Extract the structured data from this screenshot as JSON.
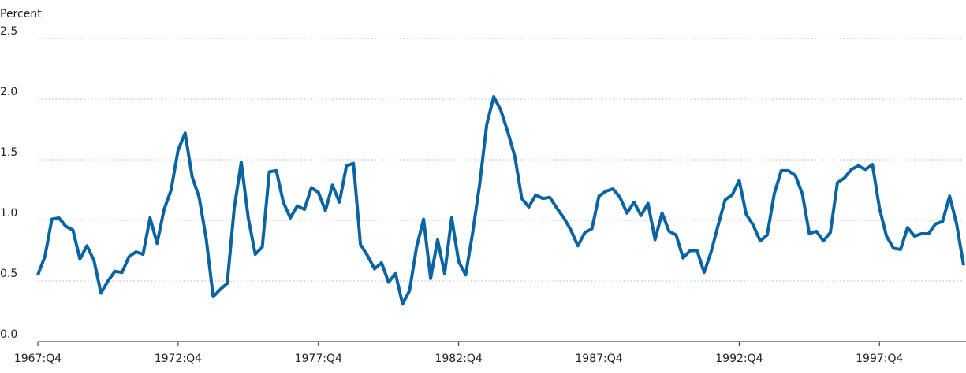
{
  "chart_data": {
    "type": "line",
    "y_label": "Percent",
    "categories": [
      "1967:Q4",
      null,
      null,
      null,
      null,
      null,
      null,
      null,
      null,
      null,
      null,
      null,
      null,
      null,
      null,
      null,
      null,
      null,
      null,
      null,
      "1972:Q4",
      null,
      null,
      null,
      null,
      null,
      null,
      null,
      null,
      null,
      null,
      null,
      null,
      null,
      null,
      null,
      null,
      null,
      null,
      null,
      "1977:Q4",
      null,
      null,
      null,
      null,
      null,
      null,
      null,
      null,
      null,
      null,
      null,
      null,
      null,
      null,
      null,
      null,
      null,
      null,
      null,
      "1982:Q4",
      null,
      null,
      null,
      null,
      null,
      null,
      null,
      null,
      null,
      null,
      null,
      null,
      null,
      null,
      null,
      null,
      null,
      null,
      null,
      "1987:Q4",
      null,
      null,
      null,
      null,
      null,
      null,
      null,
      null,
      null,
      null,
      null,
      null,
      null,
      null,
      null,
      null,
      null,
      null,
      null,
      "1992:Q4",
      null,
      null,
      null,
      null,
      null,
      null,
      null,
      null,
      null,
      null,
      null,
      null,
      null,
      null,
      null,
      null,
      null,
      null,
      null,
      "1997:Q4",
      null,
      null,
      null,
      null,
      null,
      null,
      null,
      null,
      null,
      null,
      null,
      null
    ],
    "series": [
      {
        "color": "#0a64a4",
        "values": [
          0.55,
          0.7,
          1.01,
          1.02,
          0.95,
          0.92,
          0.68,
          0.79,
          0.67,
          0.4,
          0.5,
          0.58,
          0.57,
          0.7,
          0.74,
          0.72,
          1.02,
          0.81,
          1.09,
          1.25,
          1.58,
          1.72,
          1.36,
          1.19,
          0.85,
          0.37,
          0.43,
          0.48,
          1.1,
          1.48,
          1.02,
          0.72,
          0.78,
          1.4,
          1.41,
          1.15,
          1.02,
          1.12,
          1.09,
          1.27,
          1.23,
          1.08,
          1.29,
          1.15,
          1.45,
          1.47,
          0.8,
          0.71,
          0.6,
          0.65,
          0.49,
          0.56,
          0.31,
          0.42,
          0.78,
          1.01,
          0.52,
          0.84,
          0.56,
          1.02,
          0.66,
          0.55,
          0.9,
          1.3,
          1.79,
          2.02,
          1.91,
          1.73,
          1.53,
          1.18,
          1.11,
          1.21,
          1.18,
          1.19,
          1.1,
          1.02,
          0.92,
          0.79,
          0.9,
          0.93,
          1.2,
          1.24,
          1.26,
          1.19,
          1.06,
          1.15,
          1.04,
          1.14,
          0.84,
          1.06,
          0.91,
          0.88,
          0.69,
          0.75,
          0.75,
          0.57,
          0.74,
          0.96,
          1.17,
          1.21,
          1.33,
          1.05,
          0.96,
          0.83,
          0.88,
          1.22,
          1.41,
          1.41,
          1.37,
          1.22,
          0.89,
          0.91,
          0.83,
          0.9,
          1.31,
          1.35,
          1.42,
          1.45,
          1.42,
          1.46,
          1.1,
          0.87,
          0.77,
          0.76,
          0.94,
          0.87,
          0.89,
          0.89,
          0.97,
          0.99,
          1.2,
          0.97,
          0.63
        ]
      }
    ],
    "ylim": [
      0,
      2.5
    ],
    "yticks": [
      {
        "value": 0,
        "label": "0.0"
      },
      0.5,
      {
        "value": 1,
        "label": "1.0"
      },
      1.5,
      {
        "value": 2,
        "label": "2.0"
      },
      2.5
    ],
    "grid": true
  }
}
